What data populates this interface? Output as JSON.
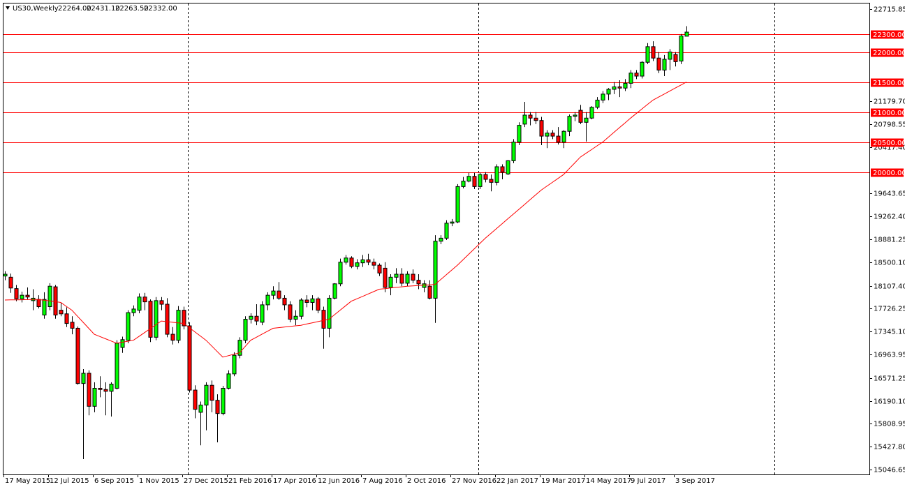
{
  "chart_data": {
    "type": "candlestick",
    "title": "US30,Weekly",
    "info": [
      "22264.00",
      "22431.10",
      "22263.50",
      "22332.00"
    ],
    "categories": [
      "17 May 2015",
      null,
      null,
      null,
      null,
      null,
      null,
      null,
      "12 Jul 2015",
      null,
      null,
      null,
      null,
      null,
      null,
      null,
      "6 Sep 2015",
      null,
      null,
      null,
      null,
      null,
      null,
      null,
      "1 Nov 2015",
      null,
      null,
      null,
      null,
      null,
      null,
      null,
      "27 Dec 2015",
      null,
      null,
      null,
      null,
      null,
      null,
      null,
      "21 Feb 2016",
      null,
      null,
      null,
      null,
      null,
      null,
      null,
      "17 Apr 2016",
      null,
      null,
      null,
      null,
      null,
      null,
      null,
      "12 Jun 2016",
      null,
      null,
      null,
      null,
      null,
      null,
      null,
      "7 Aug 2016",
      null,
      null,
      null,
      null,
      null,
      null,
      null,
      "2 Oct 2016",
      null,
      null,
      null,
      null,
      null,
      null,
      null,
      "27 Nov 2016",
      null,
      null,
      null,
      null,
      null,
      null,
      null,
      "22 Jan 2017",
      null,
      null,
      null,
      null,
      null,
      null,
      null,
      "19 Mar 2017",
      null,
      null,
      null,
      null,
      null,
      null,
      null,
      "14 May 2017",
      null,
      null,
      null,
      null,
      null,
      null,
      null,
      "9 Jul 2017",
      null,
      null,
      null,
      null,
      null,
      null,
      null,
      "3 Sep 2017",
      null,
      null
    ],
    "open": [
      18270,
      18250,
      18060,
      17890,
      17950,
      17860,
      17880,
      17620,
      17760,
      18090,
      17700,
      17640,
      17500,
      17400,
      16480,
      16650,
      16100,
      16400,
      16380,
      16350,
      16400,
      17080,
      17200,
      17660,
      17700,
      17920,
      17850,
      17250,
      17860,
      17800,
      17300,
      17200,
      17700,
      17440,
      16370,
      16000,
      16120,
      16450,
      16200,
      15980,
      16400,
      16640,
      16950,
      17200,
      17550,
      17600,
      17500,
      17790,
      17950,
      18020,
      17900,
      17790,
      17550,
      17600,
      17870,
      17830,
      17890,
      17700,
      17400,
      17900,
      18140,
      18500,
      18570,
      18430,
      18490,
      18540,
      18500,
      18450,
      18400,
      18080,
      18250,
      18300,
      18150,
      18300,
      18200,
      18080,
      18100,
      17900,
      18850,
      18900,
      19150,
      19170,
      19760,
      19850,
      19930,
      19760,
      19960,
      19880,
      19830,
      20090,
      19970,
      20190,
      20500,
      20800,
      20950,
      20900,
      20860,
      20600,
      20650,
      20600,
      20500,
      20680,
      20930,
      21030,
      20830,
      20900,
      21080,
      21200,
      21300,
      21380,
      21420,
      21400,
      21480,
      21650,
      21600,
      21830,
      22090,
      21900,
      21700,
      21880,
      21960,
      21850,
      22264
    ],
    "high": [
      18350,
      18310,
      18120,
      18010,
      18080,
      18050,
      17950,
      18000,
      18150,
      18120,
      17830,
      17750,
      17600,
      17430,
      16720,
      16700,
      16500,
      16600,
      16500,
      16500,
      17200,
      17260,
      17700,
      17780,
      17980,
      17990,
      17880,
      17920,
      17920,
      17900,
      17420,
      17770,
      17760,
      17500,
      16450,
      16180,
      16500,
      16530,
      16300,
      16440,
      16700,
      17000,
      17250,
      17600,
      17650,
      17800,
      17850,
      18000,
      18100,
      18170,
      17950,
      17850,
      17700,
      17900,
      17950,
      17950,
      17920,
      17760,
      17950,
      18150,
      18560,
      18620,
      18600,
      18550,
      18620,
      18640,
      18560,
      18480,
      18500,
      18300,
      18400,
      18400,
      18350,
      18380,
      18300,
      18200,
      18200,
      18950,
      18950,
      19200,
      19220,
      19800,
      19920,
      19990,
      19990,
      19990,
      20000,
      19960,
      20130,
      20130,
      20200,
      20550,
      20830,
      21170,
      21000,
      21000,
      20920,
      20700,
      20700,
      20750,
      20700,
      20960,
      21000,
      21120,
      21000,
      21100,
      21250,
      21350,
      21400,
      21500,
      21530,
      21550,
      21700,
      21700,
      21850,
      22150,
      22180,
      22000,
      21950,
      22050,
      22000,
      22300,
      22431.1
    ],
    "low": [
      18200,
      17990,
      17850,
      17830,
      17880,
      17700,
      17730,
      17560,
      17700,
      17560,
      17600,
      17420,
      17300,
      16460,
      15220,
      15950,
      16000,
      16250,
      15950,
      15930,
      16380,
      16990,
      17150,
      17600,
      17650,
      17700,
      17170,
      17200,
      17700,
      17250,
      17130,
      17150,
      17380,
      16330,
      15900,
      15450,
      15700,
      16000,
      15500,
      15950,
      16380,
      16600,
      16900,
      17150,
      17480,
      17450,
      17450,
      17700,
      17880,
      17870,
      17700,
      17500,
      17450,
      17550,
      17750,
      17700,
      17650,
      17060,
      17250,
      17880,
      18100,
      18460,
      18400,
      18380,
      18420,
      18450,
      18380,
      18270,
      18000,
      17950,
      18150,
      18100,
      18100,
      18150,
      18050,
      18000,
      17880,
      17490,
      18800,
      18870,
      19100,
      19150,
      19730,
      19830,
      19720,
      19720,
      19830,
      19680,
      19780,
      19880,
      19950,
      20150,
      20450,
      20750,
      20780,
      20800,
      20450,
      20400,
      20550,
      20460,
      20400,
      20600,
      20850,
      20800,
      20510,
      20880,
      21050,
      21150,
      21200,
      21300,
      21250,
      21350,
      21400,
      21550,
      21560,
      21800,
      21850,
      21650,
      21600,
      21700,
      21760,
      21800,
      22263.5
    ],
    "close": [
      18300,
      18070,
      17890,
      17950,
      17920,
      17900,
      17760,
      17880,
      18100,
      17620,
      17640,
      17480,
      17400,
      16480,
      16650,
      16100,
      16400,
      16380,
      16350,
      16470,
      17150,
      17210,
      17660,
      17720,
      17920,
      17840,
      17250,
      17860,
      17800,
      17300,
      17200,
      17700,
      17440,
      16370,
      16050,
      16120,
      16450,
      16200,
      15980,
      16400,
      16640,
      16950,
      17200,
      17550,
      17600,
      17520,
      17790,
      17950,
      18020,
      17900,
      17790,
      17550,
      17600,
      17870,
      17830,
      17890,
      17700,
      17400,
      17900,
      18140,
      18500,
      18570,
      18430,
      18490,
      18540,
      18500,
      18450,
      18320,
      18080,
      18250,
      18300,
      18150,
      18300,
      18200,
      18140,
      18140,
      17900,
      18850,
      18900,
      19150,
      19170,
      19760,
      19850,
      19930,
      19760,
      19960,
      19880,
      19830,
      20090,
      20000,
      20190,
      20500,
      20780,
      20950,
      20900,
      20860,
      20600,
      20650,
      20600,
      20500,
      20680,
      20930,
      20950,
      20830,
      20900,
      21080,
      21200,
      21300,
      21380,
      21420,
      21400,
      21480,
      21650,
      21600,
      21830,
      22090,
      21900,
      21700,
      21880,
      22000,
      21840,
      22268,
      22332
    ],
    "up_color": "#00ff00",
    "down_color": "#ff0000",
    "wick_color": "#000000",
    "ma": {
      "color": "#ff0000",
      "values": [
        17870,
        17872,
        17873,
        17875,
        17877,
        17878,
        17880,
        17868,
        17855,
        17843,
        17830,
        17765,
        17700,
        17600,
        17500,
        17400,
        17300,
        17263,
        17225,
        17188,
        17150,
        17167,
        17183,
        17200,
        17264,
        17328,
        17392,
        17456,
        17520,
        17510,
        17500,
        17490,
        17480,
        17410,
        17340,
        17270,
        17200,
        17107,
        17013,
        16920,
        16943,
        16967,
        16990,
        17095,
        17200,
        17250,
        17300,
        17350,
        17400,
        17410,
        17420,
        17430,
        17440,
        17450,
        17470,
        17490,
        17510,
        17530,
        17550,
        17625,
        17700,
        17775,
        17850,
        17890,
        17930,
        17970,
        18010,
        18050,
        18060,
        18070,
        18080,
        18090,
        18100,
        18106,
        18112,
        18118,
        18124,
        18130,
        18210,
        18290,
        18370,
        18450,
        18540,
        18630,
        18720,
        18810,
        18900,
        18980,
        19060,
        19140,
        19220,
        19300,
        19380,
        19460,
        19540,
        19620,
        19700,
        19765,
        19830,
        19895,
        19960,
        20057,
        20153,
        20250,
        20313,
        20375,
        20438,
        20500,
        20580,
        20660,
        20740,
        20820,
        20900,
        20975,
        21050,
        21125,
        21200,
        21250,
        21300,
        21350,
        21400,
        21450,
        21500
      ]
    },
    "levels": [
      {
        "value": 22300,
        "label": "22300.00"
      },
      {
        "value": 22000,
        "label": "22000.00"
      },
      {
        "value": 21500,
        "label": "21500.00"
      },
      {
        "value": 21000,
        "label": "21000.00"
      },
      {
        "value": 20500,
        "label": "20500.00"
      },
      {
        "value": 20000,
        "label": "20000.00"
      }
    ],
    "level_color": "#ff0000",
    "ylim": [
      14965,
      22809
    ],
    "yticks": [
      {
        "value": 22715.85,
        "label": "22715.85"
      },
      {
        "value": 21179.7,
        "label": "21179.70"
      },
      {
        "value": 20798.55,
        "label": "20798.55"
      },
      {
        "value": 20417.4,
        "label": "20417.40"
      },
      {
        "value": 19643.65,
        "label": "19643.65"
      },
      {
        "value": 19262.4,
        "label": "19262.40"
      },
      {
        "value": 18881.25,
        "label": "18881.25"
      },
      {
        "value": 18500.1,
        "label": "18500.10"
      },
      {
        "value": 18107.4,
        "label": "18107.40"
      },
      {
        "value": 17726.25,
        "label": "17726.25"
      },
      {
        "value": 17345.1,
        "label": "17345.10"
      },
      {
        "value": 16963.95,
        "label": "16963.95"
      },
      {
        "value": 16571.25,
        "label": "16571.25"
      },
      {
        "value": 16190.1,
        "label": "16190.10"
      },
      {
        "value": 15808.95,
        "label": "15808.95"
      },
      {
        "value": 15427.8,
        "label": "15427.80"
      },
      {
        "value": 15046.65,
        "label": "15046.65"
      }
    ]
  }
}
